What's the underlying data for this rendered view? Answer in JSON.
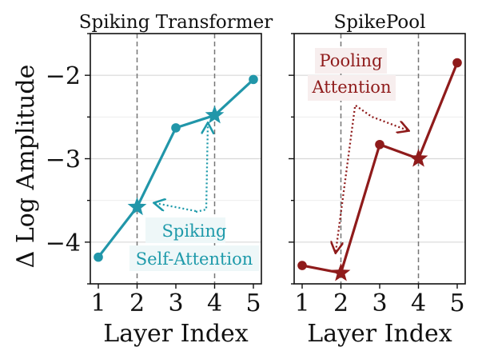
{
  "ylabel": "Δ Log Amplitude",
  "chart_data": [
    {
      "type": "line",
      "title": "Spiking Transformer",
      "xlabel": "Layer Index",
      "x": [
        1,
        2,
        3,
        4,
        5
      ],
      "ylim": [
        -4.5,
        -1.5
      ],
      "yticks": [
        -4,
        -3,
        -2
      ],
      "ytick_labels": [
        "−4",
        "−3",
        "−2"
      ],
      "xtick_labels": [
        "1",
        "2",
        "3",
        "4",
        "5"
      ],
      "series": [
        {
          "values": [
            -4.18,
            -3.58,
            -2.63,
            -2.48,
            -2.05
          ],
          "color": "#2196a9"
        }
      ],
      "star_layers": [
        2,
        4
      ],
      "vlines": [
        2,
        4
      ],
      "annotation": {
        "lines": [
          "Spiking",
          "Self-Attention"
        ],
        "color": "#1e9aaa",
        "bg": "#eef7f8"
      }
    },
    {
      "type": "line",
      "title": "SpikePool",
      "xlabel": "Layer Index",
      "x": [
        1,
        2,
        3,
        4,
        5
      ],
      "ylim": [
        -4.5,
        -1.5
      ],
      "yticks": [
        -4,
        -3,
        -2
      ],
      "xtick_labels": [
        "1",
        "2",
        "3",
        "4",
        "5"
      ],
      "series": [
        {
          "values": [
            -4.28,
            -4.37,
            -2.83,
            -3.0,
            -1.85
          ],
          "color": "#8f1b1b"
        }
      ],
      "star_layers": [
        2,
        4
      ],
      "vlines": [
        2,
        4
      ],
      "annotation": {
        "lines": [
          "Pooling",
          "Attention"
        ],
        "color": "#8f1b1b",
        "bg": "#f7eeee"
      }
    }
  ]
}
